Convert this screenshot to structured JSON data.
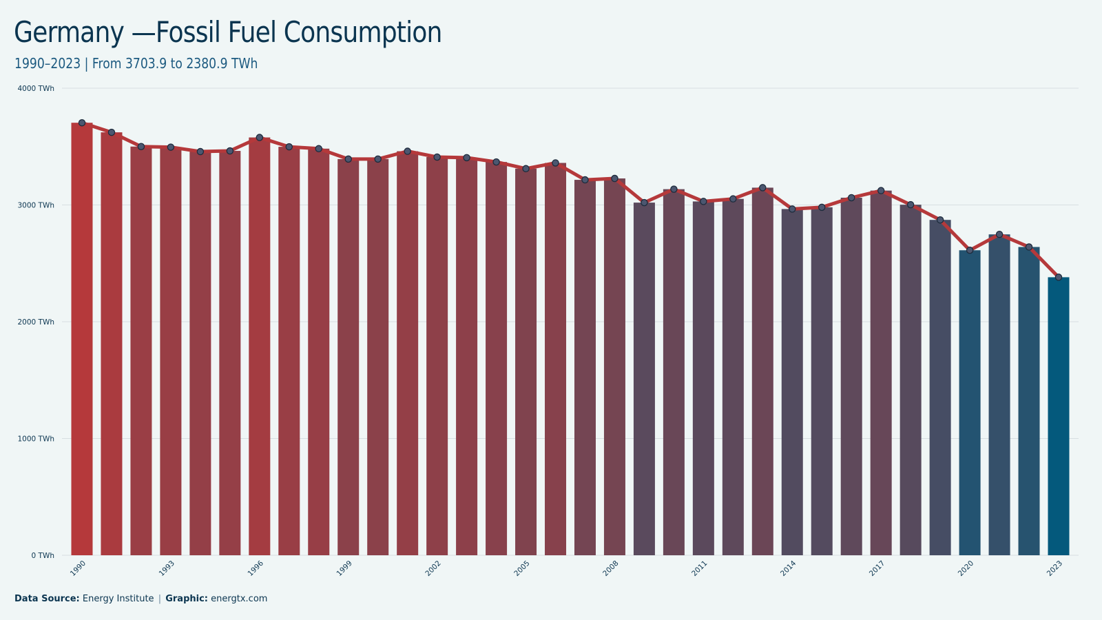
{
  "title": "Germany —Fossil Fuel Consumption",
  "subtitle": "1990–2023 | From 3703.9 to 2380.9  TWh",
  "footer": {
    "source_label": "Data Source:",
    "source_value": "Energy Institute",
    "separator": "|",
    "graphic_label": "Graphic:",
    "graphic_value": "energtx.com"
  },
  "colors": {
    "start": "#b5393b",
    "end": "#04597c",
    "line": "#b5393b",
    "marker_fill": "#4c5770",
    "marker_stroke": "#1d2b3c",
    "grid": "#d7dfe2",
    "text": "#0b3550"
  },
  "chart_data": {
    "type": "bar",
    "unit": "TWh",
    "x": [
      1990,
      1991,
      1992,
      1993,
      1994,
      1995,
      1996,
      1997,
      1998,
      1999,
      2000,
      2001,
      2002,
      2003,
      2004,
      2005,
      2006,
      2007,
      2008,
      2009,
      2010,
      2011,
      2012,
      2013,
      2014,
      2015,
      2016,
      2017,
      2018,
      2019,
      2020,
      2021,
      2022,
      2023
    ],
    "x_tick_labels": [
      "1990",
      "1993",
      "1996",
      "1999",
      "2002",
      "2005",
      "2008",
      "2011",
      "2014",
      "2017",
      "2020",
      "2023"
    ],
    "values": [
      3703.9,
      3622,
      3500,
      3495,
      3457,
      3463,
      3578,
      3498,
      3482,
      3393,
      3393,
      3460,
      3410,
      3405,
      3368,
      3311,
      3360,
      3215,
      3227,
      3020,
      3135,
      3030,
      3052,
      3148,
      2965,
      2980,
      3062,
      3123,
      3002,
      2872,
      2612,
      2748,
      2640,
      2380.9
    ],
    "ylim": [
      0,
      4000
    ],
    "y_ticks": [
      0,
      1000,
      2000,
      3000,
      4000
    ],
    "y_tick_labels": [
      "0 TWh",
      "1000 TWh",
      "2000 TWh",
      "3000 TWh",
      "4000 TWh"
    ],
    "xlabel": "",
    "ylabel": "",
    "grid": true,
    "legend": "none",
    "overlay": "line-with-markers"
  }
}
